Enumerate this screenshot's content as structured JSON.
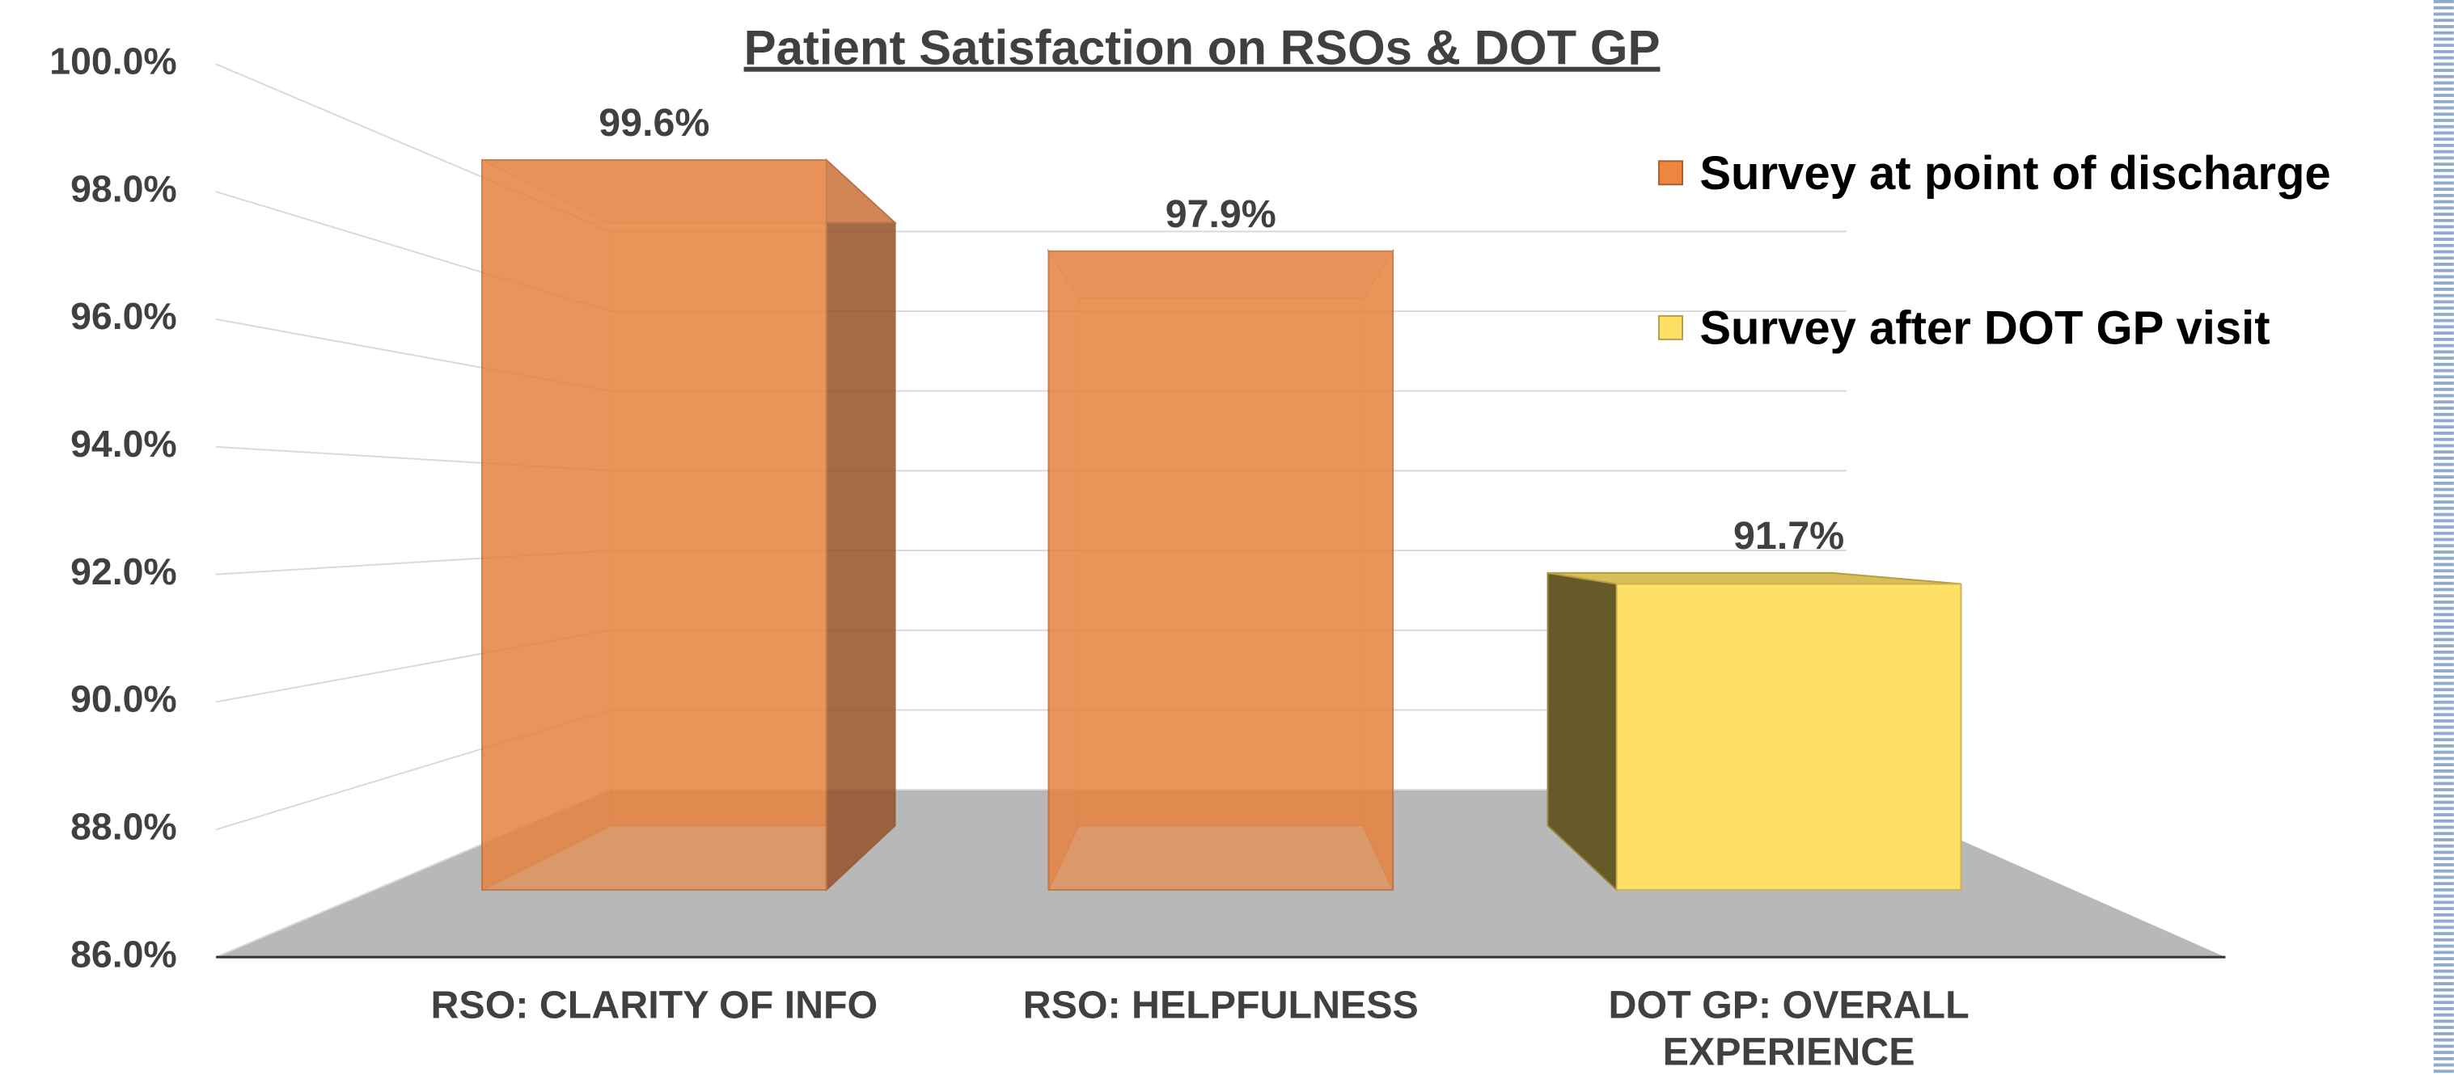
{
  "chart_data": {
    "type": "bar3d",
    "title": "Patient Satisfaction on RSOs & DOT GP",
    "categories": [
      "RSO: CLARITY OF INFO",
      "RSO: HELPFULNESS",
      "DOT GP: OVERALL EXPERIENCE"
    ],
    "series": [
      {
        "name": "Survey at point of discharge",
        "color": "#ee8640",
        "values": [
          99.6,
          97.9,
          null
        ],
        "value_labels": [
          "99.6%",
          "97.9%",
          null
        ]
      },
      {
        "name": "Survey after DOT GP visit",
        "color": "#ffe066",
        "values": [
          null,
          null,
          91.7
        ],
        "value_labels": [
          null,
          null,
          "91.7%"
        ]
      }
    ],
    "ylim": [
      86,
      100
    ],
    "yticks": [
      {
        "value": 86,
        "label": "86.0%"
      },
      {
        "value": 88,
        "label": "88.0%"
      },
      {
        "value": 90,
        "label": "90.0%"
      },
      {
        "value": 92,
        "label": "92.0%"
      },
      {
        "value": 94,
        "label": "94.0%"
      },
      {
        "value": 96,
        "label": "96.0%"
      },
      {
        "value": 98,
        "label": "98.0%"
      },
      {
        "value": 100,
        "label": "100.0%"
      }
    ],
    "grid": true
  }
}
